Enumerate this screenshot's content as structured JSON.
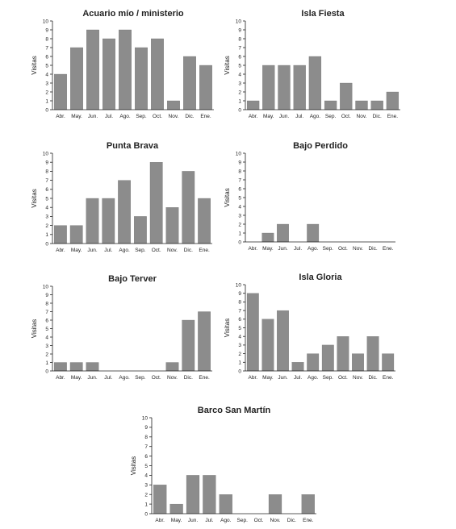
{
  "chart_data": [
    {
      "type": "bar",
      "title": "Acuario mío / ministerio",
      "ylabel": "Visitas",
      "categories": [
        "Abr.",
        "May.",
        "Jun.",
        "Jul.",
        "Ago.",
        "Sep.",
        "Oct.",
        "Nov.",
        "Dic.",
        "Ene."
      ],
      "values": [
        4,
        7,
        9,
        8,
        9,
        7,
        8,
        1,
        6,
        5
      ],
      "ylim": [
        0,
        10
      ],
      "yticks": [
        "0",
        "1",
        "2",
        "3",
        "4",
        "5",
        "6",
        "7",
        "8",
        "9",
        "10"
      ],
      "grid": false
    },
    {
      "type": "bar",
      "title": "Isla Fiesta",
      "ylabel": "Visitas",
      "categories": [
        "Abr.",
        "May.",
        "Jun.",
        "Jul.",
        "Ago.",
        "Sep.",
        "Oct.",
        "Nov.",
        "Dic.",
        "Ene."
      ],
      "values": [
        1,
        5,
        5,
        5,
        6,
        1,
        3,
        1,
        1,
        2
      ],
      "ylim": [
        0,
        10
      ],
      "yticks": [
        "0",
        "1",
        "2",
        "3",
        "4",
        "5",
        "6",
        "7",
        "8",
        "9",
        "10"
      ],
      "grid": false
    },
    {
      "type": "bar",
      "title": "Punta Brava",
      "ylabel": "Visitas",
      "categories": [
        "Abr.",
        "May.",
        "Jun.",
        "Jul.",
        "Ago.",
        "Sep.",
        "Oct.",
        "Nov.",
        "Dic.",
        "Ene."
      ],
      "values": [
        2,
        2,
        5,
        5,
        7,
        3,
        9,
        4,
        8,
        5
      ],
      "ylim": [
        0,
        10
      ],
      "yticks": [
        "0",
        "1",
        "2",
        "3",
        "4",
        "5",
        "6",
        "7",
        "8",
        "9",
        "10"
      ],
      "grid": false
    },
    {
      "type": "bar",
      "title": "Bajo Perdido",
      "ylabel": "Visitas",
      "categories": [
        "Abr.",
        "May.",
        "Jun.",
        "Jul.",
        "Ago.",
        "Sep.",
        "Oct.",
        "Nov.",
        "Dic.",
        "Ene."
      ],
      "values": [
        0,
        1,
        2,
        0,
        2,
        0,
        0,
        0,
        0,
        0
      ],
      "ylim": [
        0,
        10
      ],
      "yticks": [
        "0",
        "1",
        "2",
        "3",
        "4",
        "5",
        "6",
        "7",
        "8",
        "9",
        "10"
      ],
      "grid": false
    },
    {
      "type": "bar",
      "title": "Bajo Terver",
      "ylabel": "Visitas",
      "categories": [
        "Abr.",
        "May.",
        "Jun.",
        "Jul.",
        "Ago.",
        "Sep.",
        "Oct.",
        "Nov.",
        "Dic.",
        "Ene."
      ],
      "values": [
        1,
        1,
        1,
        0,
        0,
        0,
        0,
        1,
        6,
        7
      ],
      "ylim": [
        0,
        10
      ],
      "yticks": [
        "0",
        "1",
        "2",
        "3",
        "4",
        "5",
        "6",
        "7",
        "8",
        "9",
        "10"
      ],
      "grid": false
    },
    {
      "type": "bar",
      "title": "Isla Gloria",
      "ylabel": "Visitas",
      "categories": [
        "Abr.",
        "May.",
        "Jun.",
        "Jul.",
        "Ago.",
        "Sep.",
        "Oct.",
        "Nov.",
        "Dic.",
        "Ene."
      ],
      "values": [
        9,
        6,
        7,
        1,
        2,
        3,
        4,
        2,
        4,
        2
      ],
      "ylim": [
        0,
        10
      ],
      "yticks": [
        "0",
        "1",
        "2",
        "3",
        "4",
        "5",
        "6",
        "7",
        "8",
        "9",
        "10"
      ],
      "grid": false
    },
    {
      "type": "bar",
      "title": "Barco San Martín",
      "ylabel": "Visitas",
      "categories": [
        "Abr.",
        "May.",
        "Jun.",
        "Jul.",
        "Ago.",
        "Sep.",
        "Oct.",
        "Nov.",
        "Dic.",
        "Ene."
      ],
      "values": [
        3,
        1,
        4,
        4,
        2,
        0,
        0,
        2,
        0,
        2
      ],
      "ylim": [
        0,
        10
      ],
      "yticks": [
        "0",
        "1",
        "2",
        "3",
        "4",
        "5",
        "6",
        "7",
        "8",
        "9",
        "10"
      ],
      "grid": false
    }
  ]
}
